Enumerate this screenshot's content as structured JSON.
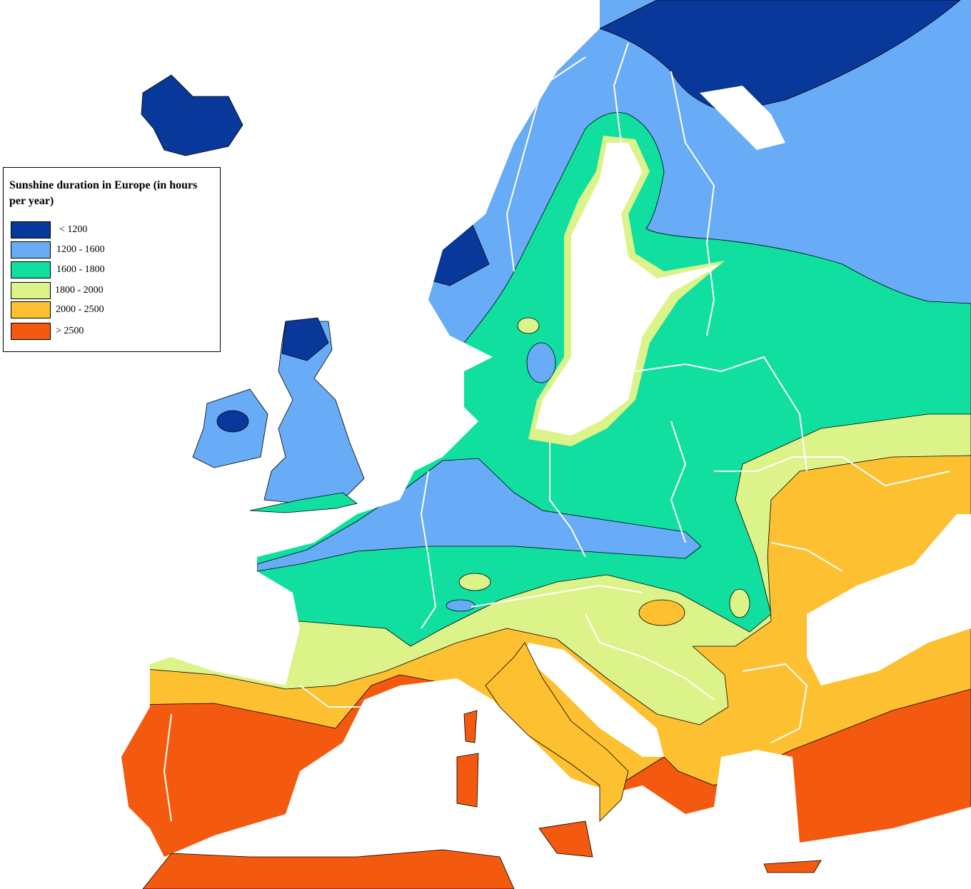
{
  "legend": {
    "title": "Sunshine duration in Europe (in hours per year)",
    "items": [
      {
        "label": "< 1200",
        "color": "#08389a"
      },
      {
        "label": "1200 - 1600",
        "color": "#68abf7"
      },
      {
        "label": "1600 - 1800",
        "color": "#10df9f"
      },
      {
        "label": "1800 - 2000",
        "color": "#dcf38a"
      },
      {
        "label": "2000 - 2500",
        "color": "#fdc031"
      },
      {
        "label": "> 2500",
        "color": "#f35a0f"
      }
    ]
  }
}
